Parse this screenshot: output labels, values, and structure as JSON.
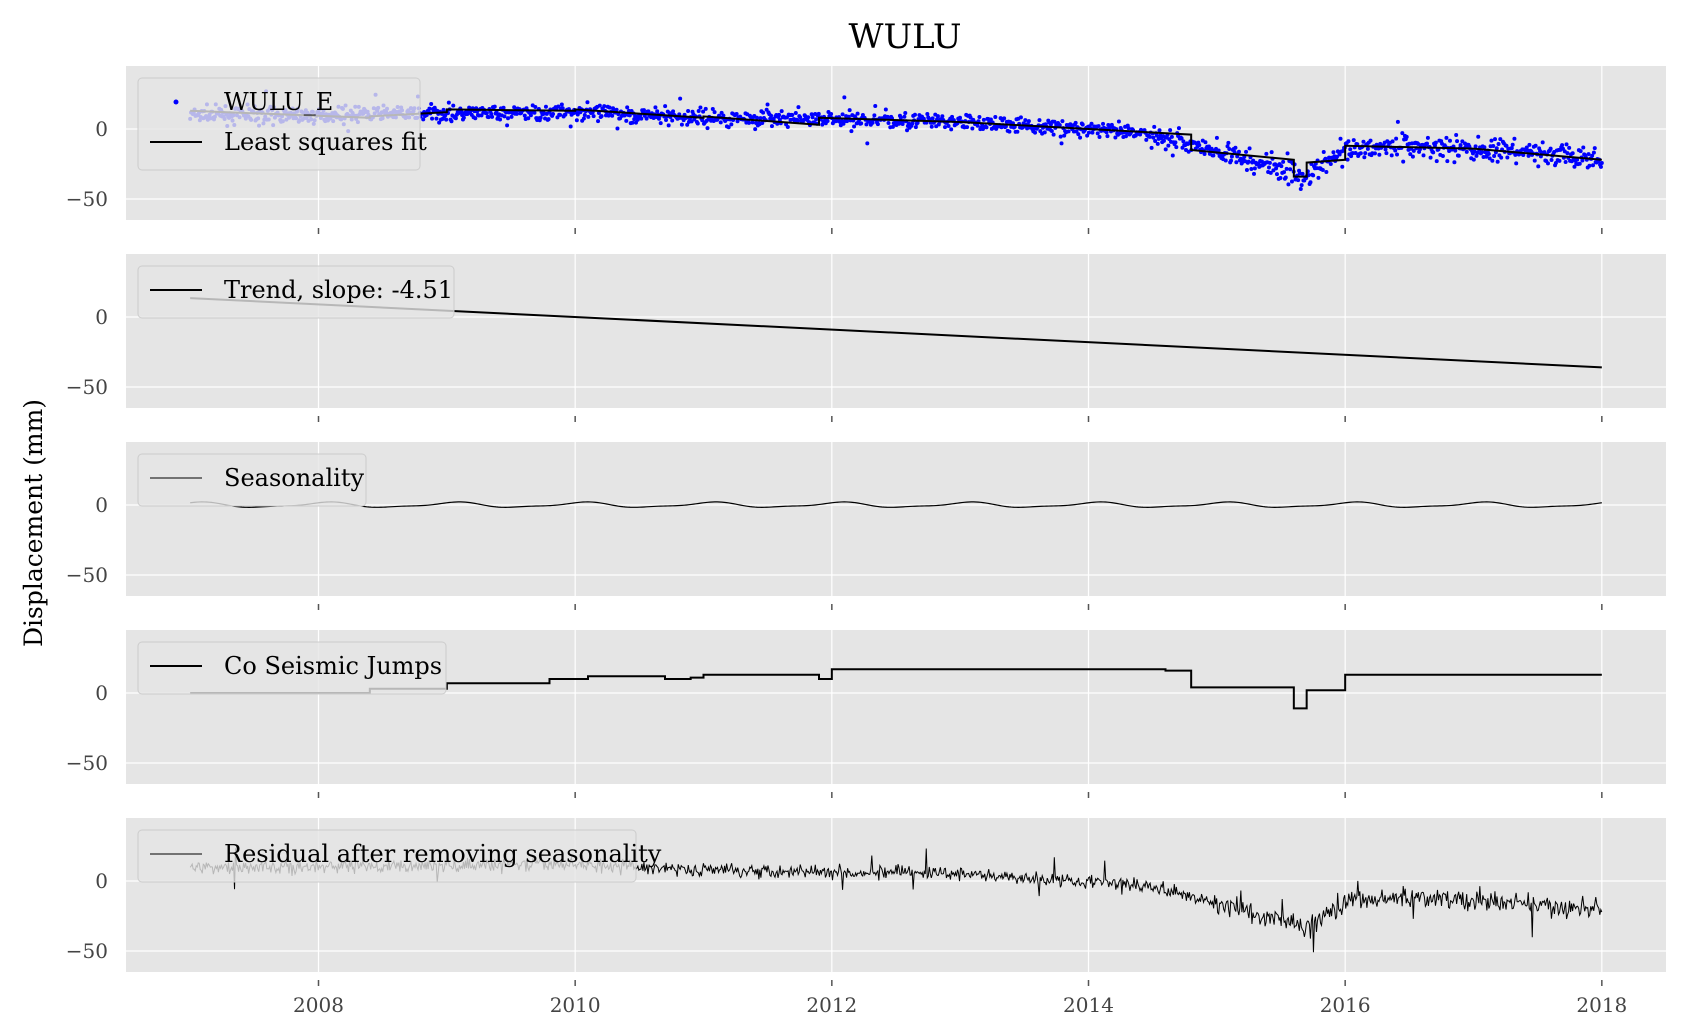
{
  "chart_data": {
    "type": "line",
    "title": "WULU",
    "ylabel": "Displacement (mm)",
    "xlabel": "",
    "xlim": [
      2006.5,
      2018.5
    ],
    "x_ticks": [
      2008,
      2010,
      2012,
      2014,
      2016,
      2018
    ],
    "x_tick_labels": [
      "2008",
      "2010",
      "2012",
      "2014",
      "2016",
      "2018"
    ],
    "ylim": [
      -65,
      45
    ],
    "y_ticks": [
      0,
      -50
    ],
    "y_tick_labels": [
      "0",
      "−50"
    ],
    "grid": true,
    "legend_position": "top-left",
    "colors": {
      "background": "#e5e5e5",
      "grid": "#ffffff",
      "points": "#0000ff",
      "line": "#000000"
    },
    "panels": [
      {
        "name": "observations",
        "legend": [
          "WULU_E",
          "Least squares fit"
        ],
        "series": [
          {
            "name": "WULU_E",
            "kind": "scatter",
            "trend_x": [
              2007.0,
              2008.0,
              2009.0,
              2010.0,
              2011.0,
              2012.0,
              2013.0,
              2014.0,
              2014.5,
              2015.0,
              2015.5,
              2015.7,
              2016.0,
              2016.5,
              2017.0,
              2017.5,
              2018.0
            ],
            "trend_y": [
              10,
              10,
              11,
              12,
              8,
              7,
              5,
              0,
              -4,
              -16,
              -28,
              -34,
              -14,
              -12,
              -15,
              -17,
              -21
            ]
          },
          {
            "name": "Least squares fit",
            "kind": "line",
            "x": [
              2007.0,
              2008.4,
              2008.4,
              2009.0,
              2009.0,
              2010.0,
              2010.0,
              2011.0,
              2011.0,
              2011.9,
              2011.9,
              2013.0,
              2014.0,
              2014.8,
              2014.8,
              2015.6,
              2015.6,
              2015.7,
              2015.7,
              2016.0,
              2016.0,
              2017.0,
              2018.0
            ],
            "y": [
              13,
              8,
              9,
              12,
              14,
              13,
              14,
              8,
              9,
              3,
              8,
              5,
              0,
              -4,
              -15,
              -22,
              -34,
              -34,
              -24,
              -22,
              -12,
              -14,
              -22
            ]
          }
        ]
      },
      {
        "name": "trend",
        "legend": [
          "Trend, slope: -4.51"
        ],
        "series": [
          {
            "name": "Trend, slope: -4.51",
            "kind": "line",
            "x": [
              2007.0,
              2018.0
            ],
            "y": [
              13.5,
              -36
            ]
          }
        ]
      },
      {
        "name": "seasonality",
        "legend": [
          "Seasonality"
        ],
        "series": [
          {
            "name": "Seasonality",
            "kind": "sine",
            "amplitude": 1.7,
            "period_years": 1.0,
            "x_start": 2007.0,
            "x_end": 2018.0
          }
        ]
      },
      {
        "name": "jumps",
        "legend": [
          "Co Seismic Jumps"
        ],
        "series": [
          {
            "name": "Co Seismic Jumps",
            "kind": "step",
            "x": [
              2007.0,
              2008.4,
              2009.0,
              2009.8,
              2010.1,
              2010.7,
              2010.9,
              2011.0,
              2011.2,
              2011.9,
              2012.0,
              2014.6,
              2014.8,
              2015.6,
              2015.7,
              2016.0,
              2018.0
            ],
            "y": [
              0,
              3,
              7,
              10,
              12,
              10,
              11,
              13,
              13,
              10,
              17,
              16,
              4,
              -11,
              2,
              13,
              13
            ]
          }
        ]
      },
      {
        "name": "residual",
        "legend": [
          "Residual after removing seasonality"
        ],
        "series": [
          {
            "name": "Residual after removing seasonality",
            "kind": "noisy-line",
            "trend_x": [
              2007.0,
              2008.0,
              2009.0,
              2010.0,
              2011.0,
              2012.0,
              2013.0,
              2014.0,
              2014.5,
              2015.0,
              2015.5,
              2015.7,
              2016.0,
              2016.5,
              2017.0,
              2017.5,
              2018.0
            ],
            "trend_y": [
              10,
              10,
              11,
              12,
              8,
              7,
              5,
              0,
              -4,
              -16,
              -28,
              -34,
              -14,
              -12,
              -15,
              -17,
              -21
            ]
          }
        ]
      }
    ]
  }
}
